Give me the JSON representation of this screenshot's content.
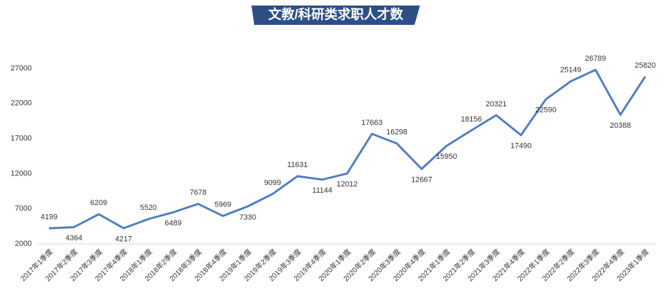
{
  "chart_data": {
    "type": "line",
    "title": "文教/科研类求职人才数",
    "categories": [
      "2017年1季度",
      "2017年2季度",
      "2017年3季度",
      "2017年4季度",
      "2018年1季度",
      "2018年2季度",
      "2018年3季度",
      "2018年4季度",
      "2019年1季度",
      "2019年2季度",
      "2019年3季度",
      "2019年4季度",
      "2020年1季度",
      "2020年2季度",
      "2020年3季度",
      "2020年4季度",
      "2021年1季度",
      "2021年2季度",
      "2021年3季度",
      "2021年4季度",
      "2022年1季度",
      "2022年2季度",
      "2022年3季度",
      "2022年4季度",
      "2023年1季度"
    ],
    "values": [
      4199,
      4364,
      6209,
      4217,
      5520,
      6489,
      7678,
      5969,
      7330,
      9099,
      11631,
      11144,
      12012,
      17663,
      16298,
      12667,
      15950,
      18156,
      20321,
      17490,
      22590,
      25149,
      26789,
      20388,
      25820
    ],
    "color": "#4f7dbd",
    "ylim": [
      2000,
      27000
    ],
    "yticks": [
      2000,
      7000,
      12000,
      17000,
      22000,
      27000
    ],
    "grid": false
  }
}
